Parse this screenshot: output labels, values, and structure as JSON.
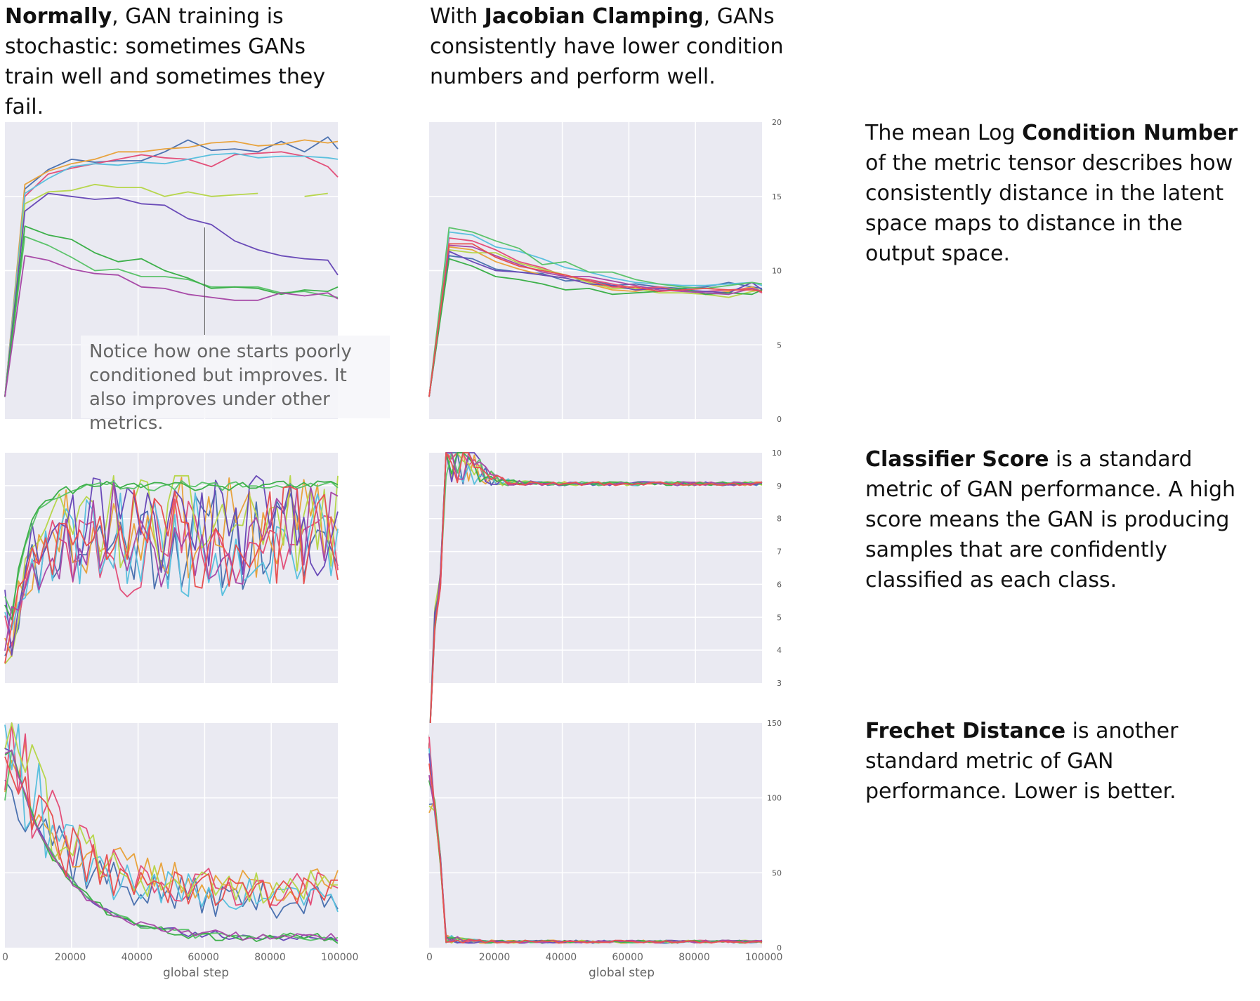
{
  "headings": {
    "left": {
      "bold": "Normally",
      "rest": ", GAN training is stochastic: sometimes GANs train well and sometimes they fail."
    },
    "right": {
      "prefix": "With ",
      "bold": "Jacobian Clamping",
      "rest": ", GANs consistently have lower condition numbers and perform well."
    }
  },
  "descriptions": [
    {
      "prefix": "The mean Log ",
      "bold": "Condition Number",
      "rest": " of the metric tensor describes  how consistently distance in the latent space maps to distance in the output space."
    },
    {
      "prefix": "",
      "bold": "Classifier Score",
      "rest": " is a standard metric of GAN performance. A high score means the GAN is producing samples that are confidently classified as each class."
    },
    {
      "prefix": "",
      "bold": "Frechet Distance",
      "rest": " is another standard metric of GAN performance. Lower is better."
    }
  ],
  "annotation": "Notice how one starts poorly conditioned but improves. It also improves under other metrics.",
  "colors": {
    "panel_bg": "#eaeaf2",
    "grid": "#ffffff",
    "series": [
      "#4c72b0",
      "#e8a33d",
      "#e3507a",
      "#5bc0de",
      "#b7d64c",
      "#6a4bb8",
      "#5cc36b",
      "#3db04a",
      "#a84ba8",
      "#e85050"
    ]
  },
  "x_axis": {
    "label": "global step",
    "ticks": [
      0,
      20000,
      40000,
      60000,
      80000,
      100000
    ],
    "range": [
      0,
      100000
    ]
  },
  "chart_data": [
    {
      "type": "line",
      "id": "condition-normal",
      "xlim": [
        0,
        100000
      ],
      "ylim": [
        0,
        20
      ],
      "x": [
        0,
        6000,
        13000,
        20000,
        27000,
        34000,
        41000,
        48000,
        55000,
        62000,
        69000,
        76000,
        83000,
        90000,
        97000,
        100000
      ],
      "series": [
        {
          "values": [
            1.5,
            15.5,
            16.8,
            17.5,
            17.3,
            17.4,
            17.4,
            18.0,
            18.8,
            18.1,
            18.2,
            18.0,
            18.7,
            18.0,
            19.0,
            18.2
          ]
        },
        {
          "values": [
            1.5,
            15.8,
            16.7,
            17.2,
            17.5,
            18.0,
            18.0,
            18.2,
            18.3,
            18.6,
            18.7,
            18.4,
            18.5,
            18.8,
            18.6,
            18.7
          ]
        },
        {
          "values": [
            1.5,
            15.0,
            16.5,
            16.9,
            17.2,
            17.5,
            17.8,
            17.6,
            17.5,
            17.0,
            17.8,
            17.9,
            18.0,
            17.7,
            17.0,
            16.3
          ]
        },
        {
          "values": [
            1.5,
            15.2,
            16.2,
            17.0,
            17.2,
            17.1,
            17.3,
            17.2,
            17.5,
            17.8,
            17.9,
            17.6,
            17.7,
            17.7,
            17.6,
            17.5
          ]
        },
        {
          "values": [
            1.5,
            14.5,
            15.3,
            15.4,
            15.8,
            15.6,
            15.6,
            15.0,
            15.3,
            15.0,
            15.1,
            15.2,
            null,
            15.0,
            15.2,
            null
          ]
        },
        {
          "values": [
            1.5,
            14.0,
            15.2,
            15.0,
            14.8,
            14.9,
            14.5,
            14.4,
            13.5,
            13.1,
            12.0,
            11.4,
            11.0,
            10.8,
            10.7,
            9.7
          ]
        },
        {
          "values": [
            1.5,
            12.3,
            11.7,
            10.9,
            10.0,
            10.1,
            9.6,
            9.6,
            9.4,
            8.9,
            8.9,
            8.9,
            8.5,
            8.6,
            8.3,
            8.2
          ]
        },
        {
          "values": [
            1.5,
            13.0,
            12.4,
            12.1,
            11.2,
            10.6,
            10.8,
            10.0,
            9.5,
            8.8,
            8.9,
            8.8,
            8.4,
            8.7,
            8.6,
            8.9
          ]
        },
        {
          "values": [
            1.5,
            11.0,
            10.7,
            10.1,
            9.8,
            9.7,
            8.9,
            8.8,
            8.4,
            8.2,
            8.0,
            8.0,
            8.5,
            8.3,
            8.5,
            8.1
          ]
        }
      ]
    },
    {
      "type": "line",
      "id": "condition-jacobian",
      "xlim": [
        0,
        100000
      ],
      "ylim": [
        0,
        20
      ],
      "y_ticks": [
        0,
        5,
        10,
        15,
        20
      ],
      "x": [
        0,
        6000,
        13000,
        20000,
        27000,
        34000,
        41000,
        48000,
        55000,
        62000,
        69000,
        76000,
        83000,
        90000,
        97000,
        100000
      ],
      "series": [
        {
          "values": [
            1.5,
            11.0,
            10.8,
            10.1,
            9.9,
            9.8,
            9.3,
            9.4,
            9.0,
            9.1,
            8.9,
            8.8,
            8.9,
            9.2,
            8.9,
            8.8
          ]
        },
        {
          "values": [
            1.5,
            11.6,
            11.4,
            10.6,
            10.1,
            9.7,
            9.5,
            9.1,
            8.7,
            8.6,
            8.9,
            8.7,
            8.4,
            8.6,
            8.9,
            8.6
          ]
        },
        {
          "values": [
            1.5,
            12.2,
            12.0,
            11.4,
            10.6,
            10.2,
            9.6,
            9.4,
            9.1,
            8.8,
            8.9,
            8.6,
            8.6,
            8.7,
            8.8,
            8.5
          ]
        },
        {
          "values": [
            1.5,
            12.6,
            12.4,
            11.6,
            11.3,
            10.8,
            10.2,
            9.9,
            9.5,
            9.2,
            9.1,
            9.0,
            9.0,
            9.1,
            9.2,
            9.0
          ]
        },
        {
          "values": [
            1.5,
            11.4,
            11.2,
            11.2,
            10.5,
            10.1,
            9.7,
            9.2,
            8.8,
            8.8,
            8.5,
            8.5,
            8.4,
            8.2,
            8.6,
            8.7
          ]
        },
        {
          "values": [
            1.5,
            11.3,
            10.6,
            10.0,
            9.9,
            9.7,
            9.5,
            9.1,
            9.0,
            8.7,
            8.8,
            8.7,
            8.6,
            8.5,
            9.2,
            8.7
          ]
        },
        {
          "values": [
            1.5,
            12.9,
            12.6,
            12.0,
            11.5,
            10.4,
            10.6,
            9.9,
            9.9,
            9.4,
            9.1,
            8.9,
            8.8,
            9.0,
            9.2,
            9.1
          ]
        },
        {
          "values": [
            1.5,
            10.8,
            10.3,
            9.6,
            9.4,
            9.1,
            8.7,
            8.8,
            8.4,
            8.5,
            8.6,
            8.8,
            8.4,
            8.5,
            8.4,
            8.7
          ]
        },
        {
          "values": [
            1.5,
            11.7,
            11.6,
            11.0,
            10.4,
            9.9,
            9.6,
            9.6,
            9.3,
            9.0,
            8.7,
            8.6,
            8.5,
            8.4,
            8.8,
            8.6
          ]
        },
        {
          "values": [
            1.5,
            11.8,
            11.8,
            10.9,
            10.3,
            10.0,
            9.7,
            9.3,
            8.9,
            8.9,
            8.6,
            8.7,
            8.8,
            8.7,
            8.7,
            8.6
          ]
        }
      ]
    },
    {
      "type": "line",
      "id": "classifier-normal",
      "xlim": [
        0,
        100000
      ],
      "ylim": [
        3,
        10
      ],
      "x_start": 0,
      "x_end": 100000,
      "points": 50,
      "seed": 11,
      "shape": {
        "start": 3.0,
        "rise": 6.0,
        "tau": 5000,
        "spread": 1.6
      },
      "stable_series": [
        6,
        7
      ]
    },
    {
      "type": "line",
      "id": "classifier-jacobian",
      "xlim": [
        0,
        100000
      ],
      "ylim": [
        3,
        10
      ],
      "y_ticks": [
        3,
        4,
        5,
        6,
        7,
        8,
        9,
        10
      ],
      "x_start": 0,
      "x_end": 100000,
      "points": 60,
      "seed": 23,
      "shape": {
        "start": 3.0,
        "plateau": 9.0,
        "tau": 4500,
        "spread": 0.12
      }
    },
    {
      "type": "line",
      "id": "frechet-normal",
      "xlim": [
        0,
        100000
      ],
      "ylim": [
        0,
        150
      ],
      "x_start": 0,
      "x_end": 100000,
      "points": 50,
      "seed": 37,
      "shape": {
        "start": 150,
        "plateau": 35,
        "tau": 15000,
        "spread": 12
      },
      "stable_series": [
        6,
        7,
        8,
        5
      ]
    },
    {
      "type": "line",
      "id": "frechet-jacobian",
      "xlim": [
        0,
        100000
      ],
      "ylim": [
        0,
        150
      ],
      "y_ticks": [
        0,
        50,
        100,
        150
      ],
      "x_start": 0,
      "x_end": 100000,
      "points": 60,
      "seed": 51,
      "shape": {
        "start": 150,
        "plateau": 3,
        "tau": 3500,
        "spread": 2
      }
    }
  ]
}
